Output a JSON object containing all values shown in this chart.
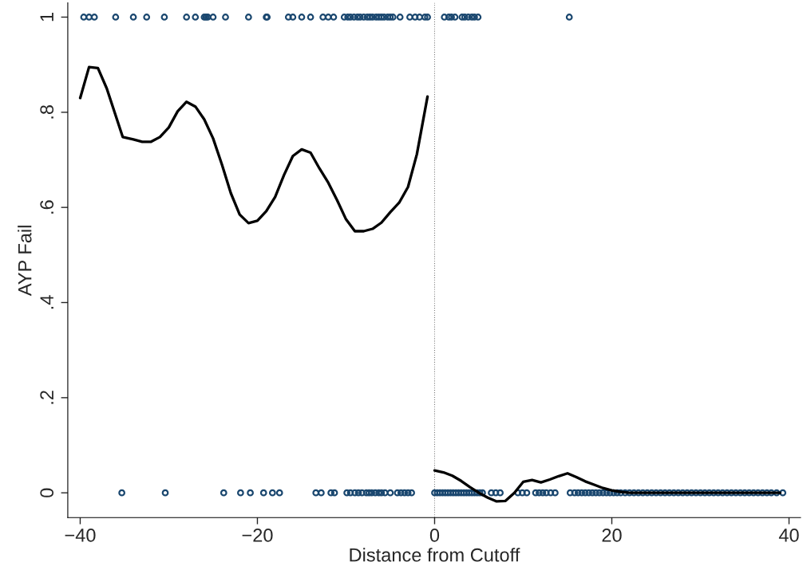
{
  "chart_data": {
    "type": "scatter",
    "xlabel": "Distance from Cutoff",
    "ylabel": "AYP Fail",
    "xlim": [
      -41.4,
      41.3
    ],
    "ylim": [
      -0.052,
      1.03
    ],
    "xticks": [
      {
        "value": -40,
        "label": "−40"
      },
      {
        "value": -20,
        "label": "−20"
      },
      0,
      20,
      40
    ],
    "yticks": [
      0,
      {
        "value": 0.2,
        "label": ".2"
      },
      {
        "value": 0.4,
        "label": ".4"
      },
      {
        "value": 0.6,
        "label": ".6"
      },
      {
        "value": 0.8,
        "label": ".8"
      },
      1
    ],
    "grid": false,
    "legend": false,
    "ref_lines": [
      {
        "axis": "x",
        "value": 0,
        "color": "#808080",
        "line_style": "dotted"
      }
    ],
    "series": [
      {
        "marker": "circle",
        "color": "#1a476f",
        "x": [
          -39.6,
          -39,
          -38.4,
          -36,
          -34,
          -32.5,
          -30.5,
          -28,
          -27,
          -26,
          -25.8,
          -25.6,
          -25,
          -23.6,
          -21,
          -19,
          -18.9,
          -16.5,
          -16,
          -15,
          -14,
          -12.6,
          -12,
          -11.4,
          -10.2,
          -9.8,
          -9.5,
          -9.1,
          -8.7,
          -8.4,
          -8,
          -7.6,
          -7.3,
          -7,
          -6.6,
          -6.3,
          -6,
          -5.7,
          -5.3,
          -5,
          -4.7,
          -3.9,
          -2.8,
          -2.2,
          -1.7,
          -1.1,
          -0.8,
          1.1,
          1.6,
          1.9,
          2.3,
          3.1,
          3.4,
          3.8,
          4.2,
          4.5,
          4.9,
          15.2,
          -35.3,
          -30.4,
          -23.8,
          -21.9,
          -20.8,
          -19.3,
          -18.3,
          -17.5,
          -13.4,
          -12.8,
          -11.7,
          -11.3,
          -9.9,
          -9.5,
          -9,
          -8.6,
          -8.2,
          -7.7,
          -7.4,
          -7.1,
          -6.7,
          -6.3,
          -6,
          -5.6,
          -5,
          -4.2,
          -3.8,
          -3.4,
          -3,
          -2.6,
          0,
          0.3,
          0.6,
          0.9,
          1.2,
          1.5,
          1.8,
          2.1,
          2.4,
          2.7,
          3,
          3.3,
          3.6,
          3.9,
          4.2,
          4.5,
          4.8,
          5.1,
          5.4,
          6.4,
          6.9,
          7.4,
          9.4,
          9.9,
          10.4,
          11.4,
          11.8,
          12.2,
          12.6,
          13.1,
          13.6,
          15.3,
          15.8,
          16.2,
          16.6,
          17,
          17.4,
          17.8,
          18.2,
          18.6,
          19,
          19.4,
          19.8,
          20.2,
          20.6,
          21,
          21.5,
          22,
          22.5,
          23,
          23.5,
          24,
          24.5,
          25,
          25.5,
          26,
          26.5,
          27,
          27.5,
          28,
          28.5,
          29,
          29.5,
          30,
          30.5,
          31,
          31.5,
          32,
          32.5,
          33,
          33.5,
          34,
          34.5,
          35,
          35.5,
          36,
          36.5,
          37,
          37.5,
          38,
          38.6,
          39.3
        ],
        "values": [
          1,
          1,
          1,
          1,
          1,
          1,
          1,
          1,
          1,
          1,
          1,
          1,
          1,
          1,
          1,
          1,
          1,
          1,
          1,
          1,
          1,
          1,
          1,
          1,
          1,
          1,
          1,
          1,
          1,
          1,
          1,
          1,
          1,
          1,
          1,
          1,
          1,
          1,
          1,
          1,
          1,
          1,
          1,
          1,
          1,
          1,
          1,
          1,
          1,
          1,
          1,
          1,
          1,
          1,
          1,
          1,
          1,
          1,
          0,
          0,
          0,
          0,
          0,
          0,
          0,
          0,
          0,
          0,
          0,
          0,
          0,
          0,
          0,
          0,
          0,
          0,
          0,
          0,
          0,
          0,
          0,
          0,
          0,
          0,
          0,
          0,
          0,
          0,
          0,
          0,
          0,
          0,
          0,
          0,
          0,
          0,
          0,
          0,
          0,
          0,
          0,
          0,
          0,
          0,
          0,
          0,
          0,
          0,
          0,
          0,
          0,
          0,
          0,
          0,
          0,
          0,
          0,
          0,
          0,
          0,
          0,
          0,
          0,
          0,
          0,
          0,
          0,
          0,
          0,
          0,
          0,
          0,
          0,
          0,
          0,
          0,
          0,
          0,
          0,
          0,
          0,
          0,
          0,
          0,
          0,
          0,
          0,
          0,
          0,
          0,
          0,
          0,
          0,
          0,
          0,
          0,
          0,
          0,
          0,
          0,
          0,
          0,
          0,
          0,
          0,
          0,
          0,
          0,
          0,
          0
        ]
      },
      {
        "type": "line",
        "color": "#000000",
        "line_style": "solid",
        "x": [
          -40,
          -39,
          -38,
          -37,
          -35.2,
          -34,
          -33,
          -32,
          -31,
          -30,
          -29,
          -28,
          -27,
          -26,
          -25,
          -24,
          -23,
          -22,
          -21,
          -20,
          -19,
          -18,
          -17,
          -16,
          -15,
          -14,
          -13,
          -12,
          -11,
          -10,
          -9,
          -8,
          -7,
          -6,
          -5,
          -4,
          -3,
          -2,
          -0.8
        ],
        "values": [
          0.83,
          0.895,
          0.893,
          0.85,
          0.748,
          0.743,
          0.738,
          0.738,
          0.748,
          0.768,
          0.802,
          0.822,
          0.812,
          0.785,
          0.745,
          0.69,
          0.63,
          0.585,
          0.567,
          0.572,
          0.592,
          0.622,
          0.668,
          0.708,
          0.722,
          0.715,
          0.682,
          0.652,
          0.615,
          0.575,
          0.55,
          0.55,
          0.555,
          0.568,
          0.59,
          0.61,
          0.643,
          0.712,
          0.833
        ]
      },
      {
        "type": "line",
        "color": "#000000",
        "line_style": "solid",
        "x": [
          0,
          1,
          2,
          3,
          4,
          5,
          6,
          7,
          8,
          9,
          10,
          11,
          12,
          13,
          14,
          15,
          16,
          17,
          18,
          19,
          20,
          21,
          22,
          25,
          30,
          35,
          39
        ],
        "values": [
          0.047,
          0.043,
          0.036,
          0.025,
          0.012,
          0.0,
          -0.01,
          -0.018,
          -0.017,
          0.0,
          0.023,
          0.027,
          0.022,
          0.028,
          0.035,
          0.041,
          0.033,
          0.024,
          0.017,
          0.01,
          0.005,
          0.002,
          0.0,
          0.0,
          0.0,
          0.0,
          0.0
        ]
      }
    ]
  }
}
